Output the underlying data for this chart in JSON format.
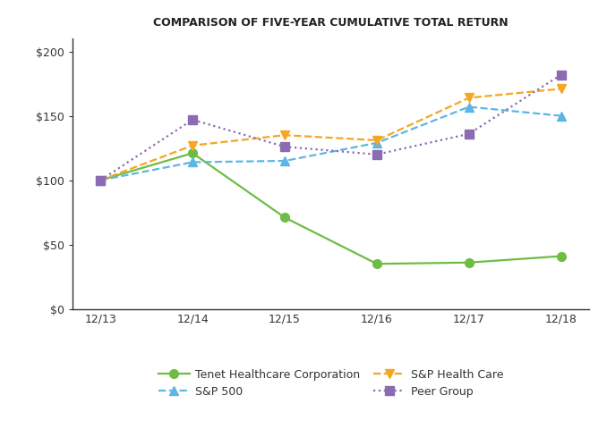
{
  "title": "COMPARISON OF FIVE-YEAR CUMULATIVE TOTAL RETURN",
  "x_labels": [
    "12/13",
    "12/14",
    "12/15",
    "12/16",
    "12/17",
    "12/18"
  ],
  "series_order": [
    "Tenet Healthcare Corporation",
    "S&P 500",
    "S&P Health Care",
    "Peer Group"
  ],
  "legend_order": [
    "Tenet Healthcare Corporation",
    "S&P 500",
    "S&P Health Care",
    "Peer Group"
  ],
  "series": {
    "Tenet Healthcare Corporation": {
      "values": [
        100,
        121,
        71,
        35,
        36,
        41
      ],
      "color": "#6DBD45",
      "linestyle": "-",
      "marker": "o",
      "linewidth": 1.6,
      "markersize": 7
    },
    "S&P 500": {
      "values": [
        100,
        114,
        115,
        129,
        157,
        150
      ],
      "color": "#5EB6E4",
      "linestyle": "--",
      "marker": "^",
      "linewidth": 1.6,
      "markersize": 7
    },
    "S&P Health Care": {
      "values": [
        100,
        127,
        135,
        131,
        164,
        171
      ],
      "color": "#F5A623",
      "linestyle": "--",
      "marker": "v",
      "linewidth": 1.6,
      "markersize": 7
    },
    "Peer Group": {
      "values": [
        100,
        147,
        126,
        120,
        136,
        182
      ],
      "color": "#8B6BB1",
      "linestyle": ":",
      "marker": "s",
      "linewidth": 1.6,
      "markersize": 7
    }
  },
  "ylim": [
    0,
    210
  ],
  "yticks": [
    0,
    50,
    100,
    150,
    200
  ],
  "ytick_labels": [
    "$0",
    "$50",
    "$100",
    "$150",
    "$200"
  ],
  "background_color": "#ffffff",
  "title_fontsize": 9,
  "tick_fontsize": 9,
  "legend_fontsize": 9,
  "spine_color": "#333333"
}
